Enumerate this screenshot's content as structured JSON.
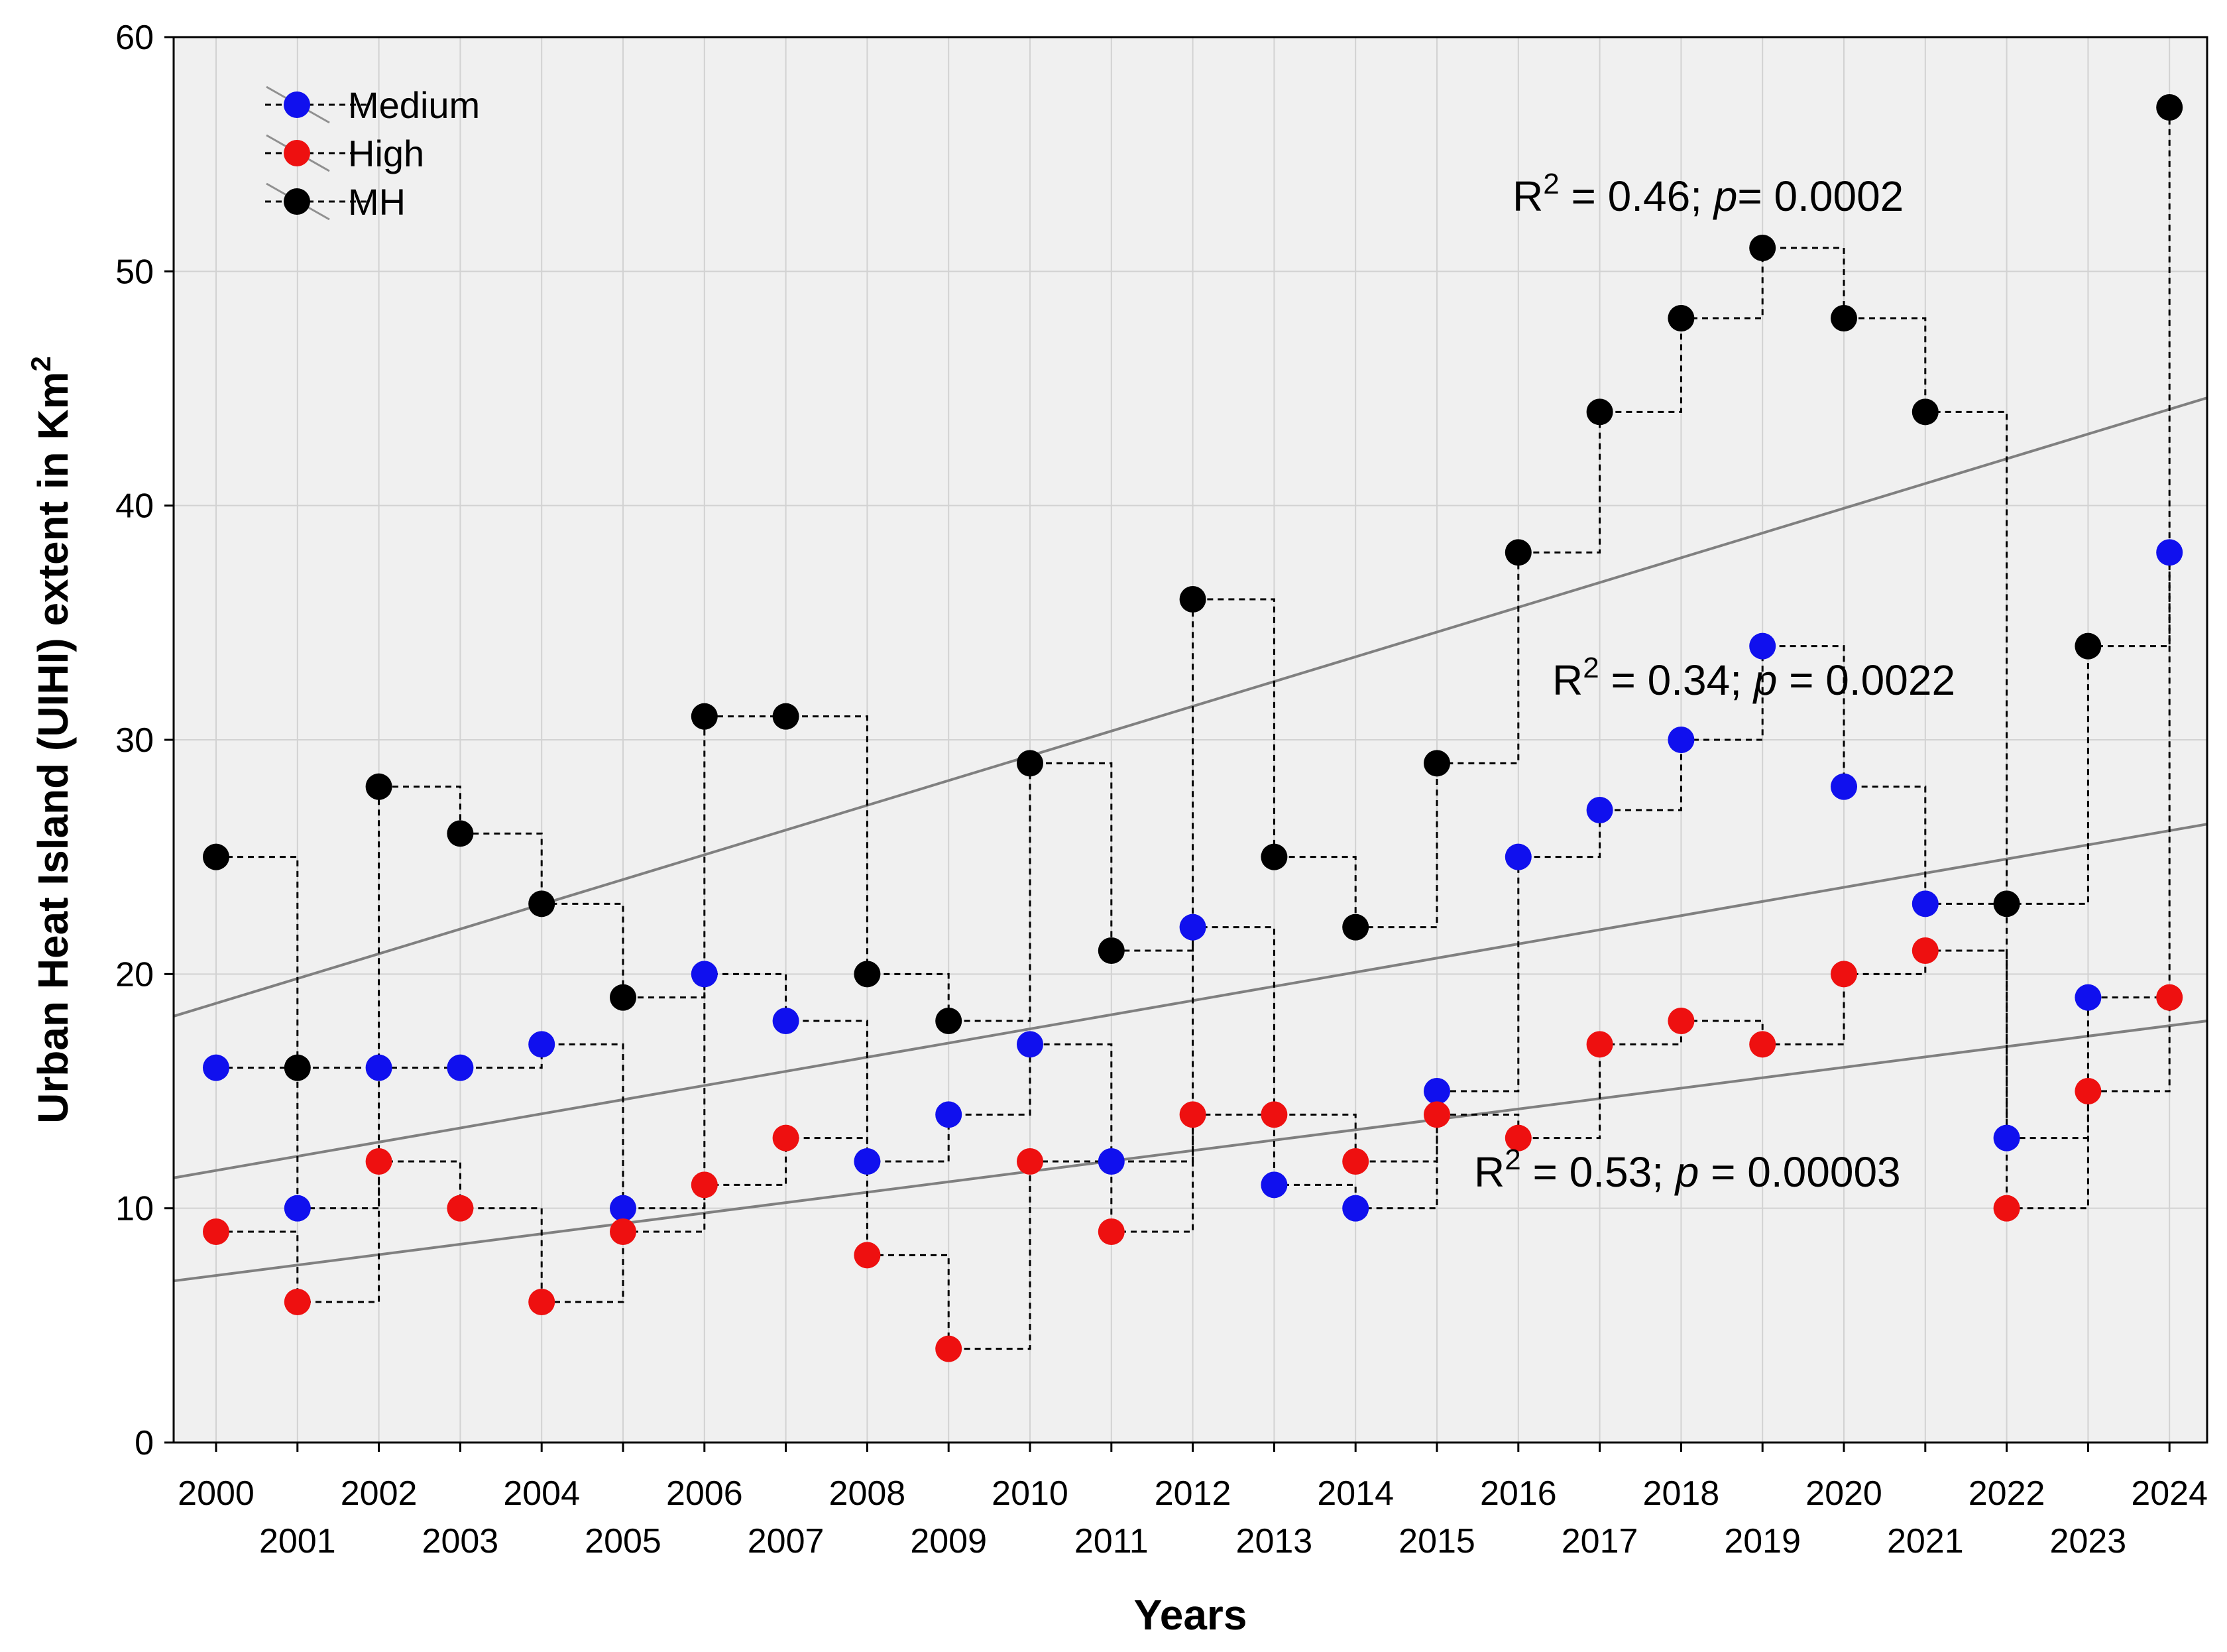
{
  "chart_data": {
    "type": "line",
    "title": "",
    "xlabel": "Years",
    "ylabel_main": "Urban Heat Island (UIHI) extent in Km",
    "ylabel_sup": "2",
    "ylim": [
      0,
      60
    ],
    "yticks": [
      0,
      10,
      20,
      30,
      40,
      50,
      60
    ],
    "x": [
      2000,
      2001,
      2002,
      2003,
      2004,
      2005,
      2006,
      2007,
      2008,
      2009,
      2010,
      2011,
      2012,
      2013,
      2014,
      2015,
      2016,
      2017,
      2018,
      2019,
      2020,
      2021,
      2022,
      2023,
      2024
    ],
    "grid": true,
    "legend_position": "top-left",
    "series": [
      {
        "name": "Medium",
        "color": "#1010ee",
        "values": [
          16,
          10,
          16,
          16,
          17,
          10,
          20,
          18,
          12,
          14,
          17,
          12,
          22,
          11,
          10,
          15,
          25,
          27,
          30,
          34,
          28,
          23,
          13,
          19,
          38
        ]
      },
      {
        "name": "High",
        "color": "#ee1010",
        "values": [
          9,
          6,
          12,
          10,
          6,
          9,
          11,
          13,
          8,
          4,
          12,
          9,
          14,
          14,
          12,
          14,
          13,
          17,
          18,
          17,
          20,
          21,
          10,
          15,
          19
        ]
      },
      {
        "name": "MH",
        "color": "#000000",
        "values": [
          25,
          16,
          28,
          26,
          23,
          19,
          31,
          31,
          20,
          18,
          29,
          21,
          36,
          25,
          22,
          29,
          38,
          44,
          48,
          51,
          48,
          44,
          23,
          34,
          57
        ]
      }
    ],
    "trendlines": [
      {
        "series": "MH",
        "start": 18.2,
        "end": 44.6,
        "color": "#808080"
      },
      {
        "series": "Medium",
        "start": 11.3,
        "end": 26.4,
        "color": "#808080"
      },
      {
        "series": "High",
        "start": 6.9,
        "end": 18.0,
        "color": "#808080"
      }
    ],
    "annotations": [
      {
        "id": "mh",
        "pre": "R",
        "sup": "2",
        "mid": " = 0.46; ",
        "italic": "p",
        "post": "= 0.0002"
      },
      {
        "id": "medium",
        "pre": "R",
        "sup": "2",
        "mid": " = 0.34; ",
        "italic": "p",
        "post": " = 0.0022"
      },
      {
        "id": "high",
        "pre": "R",
        "sup": "2",
        "mid": " = 0.53; ",
        "italic": "p",
        "post": " = 0.00003"
      }
    ]
  }
}
